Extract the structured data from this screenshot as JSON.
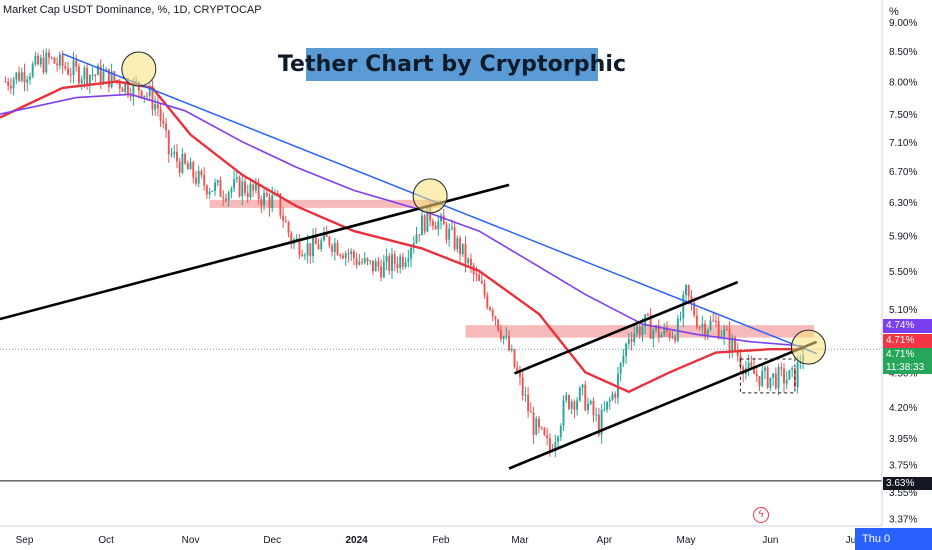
{
  "header": {
    "symbol": "Market Cap USDT Dominance, %, 1D, CRYPTOCAP",
    "unit": "%"
  },
  "title_banner": "Tether Chart by Cryptorphic",
  "price_axis": {
    "ticks": [
      "9.00%",
      "8.50%",
      "8.00%",
      "7.50%",
      "7.10%",
      "6.70%",
      "6.30%",
      "5.90%",
      "5.50%",
      "5.10%",
      "4.50%",
      "4.20%",
      "3.95%",
      "3.75%",
      "3.55%",
      "3.37%"
    ],
    "tags": [
      {
        "label": "4.74%",
        "color": "#7b3ff2"
      },
      {
        "label": "4.71%",
        "color": "#f23645"
      },
      {
        "label": "4.71%",
        "sub": "11:38:33",
        "color": "#26a65b"
      },
      {
        "label": "3.63%",
        "color": "#131722"
      }
    ]
  },
  "time_axis": {
    "ticks": [
      "Sep",
      "Oct",
      "Nov",
      "Dec",
      "2024",
      "Feb",
      "Mar",
      "Apr",
      "May",
      "Jun",
      "Jul"
    ],
    "corner_label": "Thu 0"
  },
  "colors": {
    "up": "#26a69a",
    "down": "#ef5350",
    "ma_fast": "#e8313a",
    "ma_slow": "#7e3ff2",
    "trendline": "#2962ff",
    "zone": "#f4a3a3",
    "highlight": "#f7e27a"
  },
  "chart_data": {
    "type": "candlestick",
    "title": "Tether Chart by Cryptorphic",
    "series_name": "Market Cap USDT Dominance, %, 1D, CRYPTOCAP",
    "scale": "log",
    "ylim": [
      3.32,
      9.4
    ],
    "x_range": [
      "2023-08-23",
      "2024-07-12"
    ],
    "anchors": [
      [
        "2023-08-25",
        8.0
      ],
      [
        "2023-09-01",
        8.15
      ],
      [
        "2023-09-10",
        8.35
      ],
      [
        "2023-09-20",
        8.15
      ],
      [
        "2023-09-30",
        8.1
      ],
      [
        "2023-10-08",
        7.95
      ],
      [
        "2023-10-14",
        7.9
      ],
      [
        "2023-10-20",
        7.6
      ],
      [
        "2023-10-24",
        6.95
      ],
      [
        "2023-10-30",
        6.75
      ],
      [
        "2023-11-05",
        6.55
      ],
      [
        "2023-11-12",
        6.45
      ],
      [
        "2023-11-20",
        6.5
      ],
      [
        "2023-11-28",
        6.35
      ],
      [
        "2023-12-03",
        6.3
      ],
      [
        "2023-12-08",
        5.85
      ],
      [
        "2023-12-15",
        5.75
      ],
      [
        "2023-12-22",
        5.85
      ],
      [
        "2023-12-31",
        5.65
      ],
      [
        "2024-01-05",
        5.55
      ],
      [
        "2024-01-12",
        5.55
      ],
      [
        "2024-01-18",
        5.65
      ],
      [
        "2024-01-24",
        6.0
      ],
      [
        "2024-01-28",
        6.15
      ],
      [
        "2024-02-03",
        5.95
      ],
      [
        "2024-02-08",
        5.75
      ],
      [
        "2024-02-13",
        5.45
      ],
      [
        "2024-02-20",
        5.1
      ],
      [
        "2024-02-26",
        4.7
      ],
      [
        "2024-03-01",
        4.4
      ],
      [
        "2024-03-06",
        4.05
      ],
      [
        "2024-03-12",
        3.86
      ],
      [
        "2024-03-18",
        4.25
      ],
      [
        "2024-03-24",
        4.3
      ],
      [
        "2024-03-30",
        4.05
      ],
      [
        "2024-04-05",
        4.35
      ],
      [
        "2024-04-10",
        4.85
      ],
      [
        "2024-04-16",
        4.95
      ],
      [
        "2024-04-22",
        4.85
      ],
      [
        "2024-04-28",
        4.9
      ],
      [
        "2024-05-01",
        5.25
      ],
      [
        "2024-05-06",
        4.95
      ],
      [
        "2024-05-12",
        4.95
      ],
      [
        "2024-05-18",
        4.75
      ],
      [
        "2024-05-24",
        4.5
      ],
      [
        "2024-05-30",
        4.45
      ],
      [
        "2024-06-04",
        4.45
      ],
      [
        "2024-06-10",
        4.45
      ],
      [
        "2024-06-13",
        4.71
      ]
    ],
    "moving_averages": [
      {
        "name": "MA fast",
        "points": [
          [
            "2023-08-23",
            7.45
          ],
          [
            "2023-09-15",
            7.9
          ],
          [
            "2023-10-05",
            8.0
          ],
          [
            "2023-10-18",
            7.9
          ],
          [
            "2023-11-01",
            7.2
          ],
          [
            "2023-11-20",
            6.65
          ],
          [
            "2023-12-10",
            6.25
          ],
          [
            "2023-12-31",
            5.95
          ],
          [
            "2024-01-25",
            5.75
          ],
          [
            "2024-02-15",
            5.5
          ],
          [
            "2024-03-08",
            5.05
          ],
          [
            "2024-03-25",
            4.5
          ],
          [
            "2024-04-10",
            4.33
          ],
          [
            "2024-04-25",
            4.5
          ],
          [
            "2024-05-12",
            4.68
          ],
          [
            "2024-06-01",
            4.71
          ],
          [
            "2024-06-13",
            4.71
          ]
        ]
      },
      {
        "name": "MA slow",
        "points": [
          [
            "2023-08-23",
            7.5
          ],
          [
            "2023-09-20",
            7.75
          ],
          [
            "2023-10-10",
            7.8
          ],
          [
            "2023-10-30",
            7.55
          ],
          [
            "2023-11-20",
            7.1
          ],
          [
            "2023-12-10",
            6.75
          ],
          [
            "2023-12-31",
            6.45
          ],
          [
            "2024-01-25",
            6.2
          ],
          [
            "2024-02-15",
            5.95
          ],
          [
            "2024-03-05",
            5.6
          ],
          [
            "2024-03-25",
            5.25
          ],
          [
            "2024-04-15",
            4.95
          ],
          [
            "2024-05-05",
            4.85
          ],
          [
            "2024-05-25",
            4.78
          ],
          [
            "2024-06-13",
            4.74
          ]
        ]
      }
    ],
    "drawings": {
      "trendlines": [
        {
          "kind": "blue_resistance",
          "from": [
            "2023-09-15",
            8.45
          ],
          "to": [
            "2024-06-18",
            4.67
          ]
        },
        {
          "kind": "black_support_long",
          "from": [
            "2023-08-23",
            5.0
          ],
          "to": [
            "2024-02-26",
            6.52
          ]
        },
        {
          "kind": "channel_top",
          "from": [
            "2024-02-28",
            4.49
          ],
          "to": [
            "2024-05-20",
            5.38
          ]
        },
        {
          "kind": "channel_bottom",
          "from": [
            "2024-02-26",
            3.72
          ],
          "to": [
            "2024-06-18",
            4.78
          ]
        }
      ],
      "zones": [
        {
          "from": "2023-11-08",
          "to": "2024-02-01",
          "low": 6.23,
          "high": 6.33
        },
        {
          "from": "2024-02-10",
          "to": "2024-06-17",
          "low": 4.82,
          "high": 4.94
        }
      ],
      "highlight_circles": [
        [
          "2023-10-13",
          8.2
        ],
        [
          "2024-01-28",
          6.38
        ],
        [
          "2024-06-15",
          4.73
        ]
      ],
      "range_box": {
        "from": "2024-05-21",
        "to": "2024-06-10",
        "low": 4.32,
        "high": 4.62
      },
      "horizontal_line": 3.63,
      "current_price_line": 4.71
    }
  }
}
